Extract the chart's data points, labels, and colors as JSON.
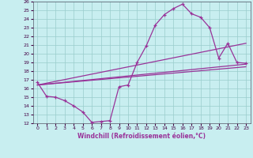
{
  "xlabel": "Windchill (Refroidissement éolien,°C)",
  "bg_color": "#c8eef0",
  "line_color": "#993399",
  "grid_color": "#99cccc",
  "xlim": [
    -0.5,
    23.5
  ],
  "ylim": [
    12,
    26
  ],
  "xticks": [
    0,
    1,
    2,
    3,
    4,
    5,
    6,
    7,
    8,
    9,
    10,
    11,
    12,
    13,
    14,
    15,
    16,
    17,
    18,
    19,
    20,
    21,
    22,
    23
  ],
  "yticks": [
    12,
    13,
    14,
    15,
    16,
    17,
    18,
    19,
    20,
    21,
    22,
    23,
    24,
    25,
    26
  ],
  "curve_x": [
    0,
    1,
    2,
    3,
    4,
    5,
    6,
    7,
    8,
    9,
    10,
    11,
    12,
    13,
    14,
    15,
    16,
    17,
    18,
    19,
    20,
    21,
    22,
    23
  ],
  "curve_y": [
    16.7,
    15.1,
    15.0,
    14.6,
    14.0,
    13.3,
    12.1,
    12.2,
    12.3,
    16.2,
    16.4,
    19.0,
    20.9,
    23.3,
    24.5,
    25.2,
    25.7,
    24.6,
    24.2,
    23.0,
    19.5,
    21.2,
    19.0,
    18.9
  ],
  "trend1_x": [
    0,
    23
  ],
  "trend1_y": [
    16.4,
    18.5
  ],
  "trend2_x": [
    0,
    23
  ],
  "trend2_y": [
    16.4,
    21.2
  ],
  "trend3_x": [
    0,
    23
  ],
  "trend3_y": [
    16.4,
    18.8
  ]
}
